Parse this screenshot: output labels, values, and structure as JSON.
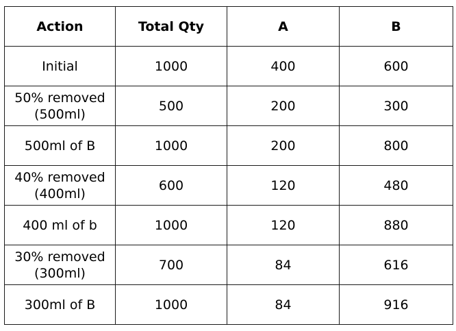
{
  "table": {
    "headers": [
      "Action",
      "Total Qty",
      "A",
      "B"
    ],
    "rows": [
      {
        "action": "Initial",
        "total": "1000",
        "a": "400",
        "b": "600"
      },
      {
        "action": "50% removed\n(500ml)",
        "total": "500",
        "a": "200",
        "b": "300"
      },
      {
        "action": "500ml of B",
        "total": "1000",
        "a": "200",
        "b": "800"
      },
      {
        "action": "40% removed\n(400ml)",
        "total": "600",
        "a": "120",
        "b": "480"
      },
      {
        "action": "400 ml of b",
        "total": "1000",
        "a": "120",
        "b": "880"
      },
      {
        "action": "30% removed\n(300ml)",
        "total": "700",
        "a": "84",
        "b": "616"
      },
      {
        "action": "300ml of B",
        "total": "1000",
        "a": "84",
        "b": "916"
      }
    ]
  }
}
